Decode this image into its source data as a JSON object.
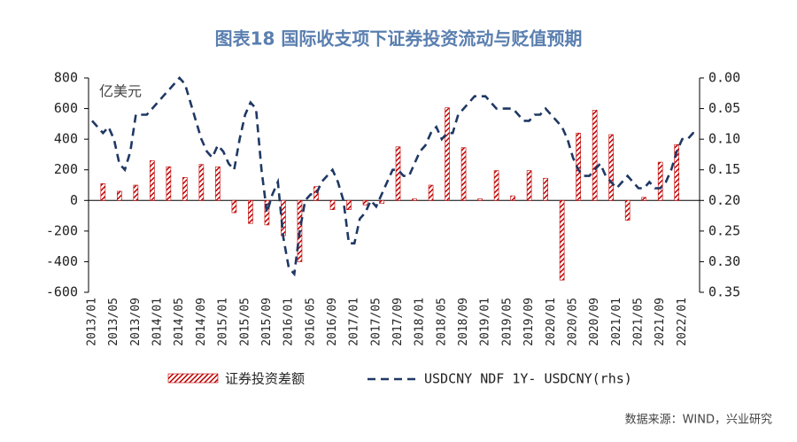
{
  "chart_data": {
    "type": "bar_line",
    "title": "图表18 国际收支项下证券投资流动与贬值预期",
    "y_label": "亿美元",
    "source": "数据来源：WIND，兴业研究",
    "categories": [
      "2013/01",
      null,
      null,
      null,
      "2013/05",
      null,
      null,
      null,
      "2013/09",
      null,
      null,
      null,
      "2014/01",
      null,
      null,
      null,
      "2014/05",
      null,
      null,
      null,
      "2014/09",
      null,
      null,
      null,
      "2015/01",
      null,
      null,
      null,
      "2015/05",
      null,
      null,
      null,
      "2015/09",
      null,
      null,
      null,
      "2016/01",
      null,
      null,
      null,
      "2016/05",
      null,
      null,
      null,
      "2016/09",
      null,
      null,
      null,
      "2017/01",
      null,
      null,
      null,
      "2017/05",
      null,
      null,
      null,
      "2017/09",
      null,
      null,
      null,
      "2018/01",
      null,
      null,
      null,
      "2018/05",
      null,
      null,
      null,
      "2018/09",
      null,
      null,
      null,
      "2019/01",
      null,
      null,
      null,
      "2019/05",
      null,
      null,
      null,
      "2019/09",
      null,
      null,
      null,
      "2020/01",
      null,
      null,
      null,
      "2020/05",
      null,
      null,
      null,
      "2020/09",
      null,
      null,
      null,
      "2021/01",
      null,
      null,
      null,
      "2021/05",
      null,
      null,
      null,
      "2021/09",
      null,
      null,
      null,
      "2022/01",
      null,
      null,
      null
    ],
    "series": [
      {
        "name": "证券投资差额",
        "color": "#c00000",
        "kind": "bar",
        "values": [
          null,
          null,
          110,
          null,
          null,
          60,
          null,
          null,
          100,
          null,
          null,
          260,
          null,
          null,
          220,
          null,
          null,
          150,
          null,
          null,
          235,
          null,
          null,
          220,
          null,
          null,
          -80,
          null,
          null,
          -150,
          null,
          null,
          -160,
          null,
          null,
          -230,
          null,
          null,
          -400,
          null,
          null,
          90,
          null,
          null,
          -60,
          null,
          null,
          -60,
          null,
          null,
          -30,
          null,
          null,
          -20,
          null,
          null,
          350,
          null,
          null,
          10,
          null,
          null,
          100,
          null,
          null,
          605,
          null,
          null,
          345,
          null,
          null,
          10,
          null,
          null,
          195,
          null,
          null,
          30,
          null,
          null,
          195,
          null,
          null,
          145,
          null,
          null,
          -520,
          null,
          null,
          440,
          null,
          null,
          590,
          null,
          null,
          430,
          null,
          null,
          -130,
          null,
          null,
          20,
          null,
          null,
          250,
          null,
          null,
          365,
          null,
          null,
          null,
          null
        ]
      },
      {
        "name": "USDCNY NDF 1Y- USDCNY(rhs)",
        "color": "#1f3864",
        "kind": "line",
        "axis": "y2",
        "values": [
          0.07,
          0.08,
          0.09,
          0.08,
          0.1,
          0.14,
          0.15,
          0.12,
          0.06,
          0.06,
          0.06,
          0.05,
          0.04,
          0.03,
          0.02,
          0.01,
          0.0,
          0.01,
          0.04,
          0.07,
          0.1,
          0.12,
          0.13,
          0.11,
          0.12,
          0.14,
          0.15,
          0.1,
          0.06,
          0.04,
          0.05,
          0.15,
          0.22,
          0.19,
          0.17,
          0.26,
          0.31,
          0.32,
          0.25,
          0.2,
          0.19,
          0.19,
          0.17,
          0.16,
          0.15,
          0.17,
          0.2,
          0.27,
          0.27,
          0.23,
          0.22,
          0.2,
          0.21,
          0.19,
          0.17,
          0.15,
          0.15,
          0.16,
          0.16,
          0.14,
          0.12,
          0.11,
          0.09,
          0.08,
          0.1,
          0.09,
          0.09,
          0.06,
          0.05,
          0.04,
          0.03,
          0.03,
          0.03,
          0.04,
          0.05,
          0.05,
          0.05,
          0.05,
          0.06,
          0.07,
          0.07,
          0.06,
          0.06,
          0.05,
          0.06,
          0.07,
          0.08,
          0.1,
          0.13,
          0.15,
          0.16,
          0.16,
          0.15,
          0.14,
          0.16,
          0.17,
          0.18,
          0.17,
          0.16,
          0.17,
          0.18,
          0.18,
          0.17,
          0.18,
          0.18,
          0.17,
          0.15,
          0.12,
          0.1,
          0.1,
          0.09,
          0.09
        ]
      }
    ],
    "ylim": [
      -600,
      800
    ],
    "yticks": [
      -600,
      -400,
      -200,
      0,
      200,
      400,
      600,
      800
    ],
    "y2lim": [
      0.35,
      0
    ],
    "y2reversed": true,
    "y2ticks": [
      {
        "value": 0,
        "label": "0.00"
      },
      {
        "value": 0.05,
        "label": "0.05"
      },
      {
        "value": 0.1,
        "label": "0.10"
      },
      {
        "value": 0.15,
        "label": "0.15"
      },
      {
        "value": 0.2,
        "label": "0.20"
      },
      {
        "value": 0.25,
        "label": "0.25"
      },
      {
        "value": 0.3,
        "label": "0.30"
      },
      {
        "value": 0.35,
        "label": "0.35"
      }
    ]
  }
}
